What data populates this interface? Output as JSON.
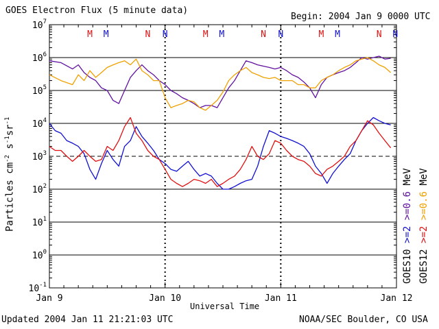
{
  "chart_data": {
    "type": "line",
    "title": "GOES Electron Flux (5 minute data)",
    "begin_label": "Begin: 2004 Jan 9 0000 UTC",
    "xlabel": "Universal Time",
    "ylabel": "Particles cm^-2 s^-1 sr^-1",
    "ylabel_parts": {
      "base": "Particles cm",
      "e1": "-2",
      "s": "s",
      "e2": "-1",
      "sr": "sr",
      "e3": "-1"
    },
    "y_scale": "log",
    "ylim": [
      0.1,
      10000000
    ],
    "y_ticks": [
      {
        "base": "10",
        "exp": "7"
      },
      {
        "base": "10",
        "exp": "6"
      },
      {
        "base": "10",
        "exp": "5"
      },
      {
        "base": "10",
        "exp": "4"
      },
      {
        "base": "10",
        "exp": "3"
      },
      {
        "base": "10",
        "exp": "2"
      },
      {
        "base": "10",
        "exp": "1"
      },
      {
        "base": "10",
        "exp": "0"
      },
      {
        "base": "10",
        "exp": "-1"
      }
    ],
    "x_range_days": [
      0,
      3
    ],
    "x_ticks": [
      "Jan 9",
      "Jan 10",
      "Jan 11",
      "Jan 12"
    ],
    "grid": "horizontal decades",
    "day_marks": [
      {
        "day": 0,
        "labels": [
          {
            "text": "M",
            "color": "#e01010",
            "t": 0.35
          },
          {
            "text": "M",
            "color": "#1010d0",
            "t": 0.49
          },
          {
            "text": "N",
            "color": "#e01010",
            "t": 0.85
          },
          {
            "text": "N",
            "color": "#1010d0",
            "t": 1.0
          }
        ]
      },
      {
        "day": 1,
        "labels": [
          {
            "text": "M",
            "color": "#e01010",
            "t": 1.35
          },
          {
            "text": "M",
            "color": "#1010d0",
            "t": 1.49
          },
          {
            "text": "N",
            "color": "#e01010",
            "t": 1.85
          },
          {
            "text": "N",
            "color": "#1010d0",
            "t": 2.0
          }
        ]
      },
      {
        "day": 2,
        "labels": [
          {
            "text": "M",
            "color": "#e01010",
            "t": 2.35
          },
          {
            "text": "M",
            "color": "#1010d0",
            "t": 2.49
          },
          {
            "text": "N",
            "color": "#e01010",
            "t": 2.85
          },
          {
            "text": "N",
            "color": "#1010d0",
            "t": 2.99
          }
        ]
      }
    ],
    "threshold_line": 1000,
    "legend_left": [
      {
        "text": ">=2",
        "color": "#1010d0"
      },
      {
        "text": ">=0.6",
        "color": "#6010a0"
      },
      {
        "text": "MeV",
        "color": "#000000"
      }
    ],
    "legend_right": [
      {
        "text": ">=2",
        "color": "#e01010"
      },
      {
        "text": ">=0.6",
        "color": "#f0a000"
      },
      {
        "text": "MeV",
        "color": "#000000"
      }
    ],
    "satellite_left": "GOES10",
    "satellite_right": "GOES12",
    "series": [
      {
        "name": "GOES10 >=0.6 MeV",
        "color": "#6010a0",
        "x": [
          0.0,
          0.1,
          0.2,
          0.25,
          0.3,
          0.35,
          0.4,
          0.45,
          0.5,
          0.55,
          0.6,
          0.65,
          0.7,
          0.75,
          0.8,
          0.85,
          0.9,
          0.95,
          1.0,
          1.05,
          1.1,
          1.15,
          1.2,
          1.25,
          1.3,
          1.35,
          1.4,
          1.45,
          1.5,
          1.55,
          1.6,
          1.65,
          1.7,
          1.75,
          1.8,
          1.85,
          1.9,
          1.95,
          2.0,
          2.05,
          2.1,
          2.15,
          2.2,
          2.25,
          2.3,
          2.35,
          2.4,
          2.45,
          2.5,
          2.55,
          2.6,
          2.65,
          2.7,
          2.75,
          2.8,
          2.85,
          2.9,
          2.95
        ],
        "y": [
          800000,
          700000,
          450000,
          600000,
          350000,
          250000,
          200000,
          120000,
          100000,
          50000,
          40000,
          100000,
          250000,
          400000,
          600000,
          400000,
          300000,
          200000,
          150000,
          100000,
          80000,
          60000,
          50000,
          40000,
          30000,
          35000,
          35000,
          30000,
          60000,
          120000,
          200000,
          400000,
          800000,
          700000,
          600000,
          550000,
          500000,
          450000,
          500000,
          400000,
          300000,
          250000,
          180000,
          120000,
          60000,
          150000,
          250000,
          300000,
          350000,
          400000,
          500000,
          700000,
          1000000,
          900000,
          1000000,
          1100000,
          900000,
          950000
        ]
      },
      {
        "name": "GOES12 >=0.6 MeV",
        "color": "#f0a000",
        "x": [
          0.0,
          0.1,
          0.2,
          0.25,
          0.3,
          0.35,
          0.4,
          0.45,
          0.5,
          0.55,
          0.6,
          0.65,
          0.7,
          0.75,
          0.8,
          0.85,
          0.9,
          0.95,
          1.0,
          1.05,
          1.1,
          1.15,
          1.2,
          1.25,
          1.3,
          1.35,
          1.4,
          1.45,
          1.5,
          1.55,
          1.6,
          1.65,
          1.7,
          1.75,
          1.8,
          1.85,
          1.9,
          1.95,
          2.0,
          2.05,
          2.1,
          2.15,
          2.2,
          2.25,
          2.3,
          2.35,
          2.4,
          2.45,
          2.5,
          2.55,
          2.6,
          2.65,
          2.7,
          2.75,
          2.8,
          2.85,
          2.9,
          2.95
        ],
        "y": [
          300000,
          200000,
          150000,
          300000,
          200000,
          400000,
          250000,
          350000,
          500000,
          600000,
          700000,
          800000,
          600000,
          900000,
          400000,
          300000,
          200000,
          200000,
          60000,
          30000,
          35000,
          40000,
          50000,
          45000,
          30000,
          25000,
          35000,
          50000,
          90000,
          200000,
          300000,
          400000,
          500000,
          350000,
          300000,
          250000,
          230000,
          250000,
          200000,
          200000,
          200000,
          150000,
          150000,
          120000,
          120000,
          200000,
          250000,
          300000,
          400000,
          500000,
          600000,
          800000,
          900000,
          1000000,
          800000,
          600000,
          500000,
          350000
        ]
      },
      {
        "name": "GOES10 >=2 MeV",
        "color": "#1010d0",
        "x": [
          0.0,
          0.05,
          0.1,
          0.15,
          0.2,
          0.25,
          0.3,
          0.35,
          0.4,
          0.45,
          0.5,
          0.55,
          0.6,
          0.65,
          0.7,
          0.75,
          0.8,
          0.85,
          0.9,
          0.95,
          1.0,
          1.05,
          1.1,
          1.15,
          1.2,
          1.25,
          1.3,
          1.35,
          1.4,
          1.45,
          1.5,
          1.55,
          1.6,
          1.65,
          1.7,
          1.75,
          1.8,
          1.85,
          1.9,
          1.95,
          2.0,
          2.05,
          2.1,
          2.15,
          2.2,
          2.25,
          2.3,
          2.35,
          2.4,
          2.45,
          2.5,
          2.55,
          2.6,
          2.65,
          2.7,
          2.75,
          2.8,
          2.85,
          2.9,
          2.95
        ],
        "y": [
          10000,
          6000,
          5000,
          3000,
          2500,
          2000,
          1200,
          400,
          200,
          600,
          1500,
          800,
          500,
          2000,
          3000,
          8000,
          4000,
          2500,
          1500,
          800,
          600,
          400,
          350,
          500,
          700,
          400,
          250,
          300,
          250,
          150,
          100,
          100,
          120,
          150,
          180,
          200,
          500,
          2000,
          6000,
          5000,
          4000,
          3500,
          3000,
          2500,
          2000,
          1200,
          500,
          300,
          150,
          300,
          500,
          800,
          1200,
          3000,
          6000,
          10000,
          15000,
          12000,
          10000,
          9000
        ]
      },
      {
        "name": "GOES12 >=2 MeV",
        "color": "#e01010",
        "x": [
          0.0,
          0.05,
          0.1,
          0.15,
          0.2,
          0.25,
          0.3,
          0.35,
          0.4,
          0.45,
          0.5,
          0.55,
          0.6,
          0.65,
          0.7,
          0.75,
          0.8,
          0.85,
          0.9,
          0.95,
          1.0,
          1.05,
          1.1,
          1.15,
          1.2,
          1.25,
          1.3,
          1.35,
          1.4,
          1.45,
          1.5,
          1.55,
          1.6,
          1.65,
          1.7,
          1.75,
          1.8,
          1.85,
          1.9,
          1.95,
          2.0,
          2.05,
          2.1,
          2.15,
          2.2,
          2.25,
          2.3,
          2.35,
          2.4,
          2.45,
          2.5,
          2.55,
          2.6,
          2.65,
          2.7,
          2.75,
          2.8,
          2.85,
          2.9,
          2.95
        ],
        "y": [
          2000,
          1500,
          1500,
          1000,
          700,
          1000,
          1500,
          1000,
          700,
          800,
          2000,
          1500,
          3000,
          8000,
          15000,
          5000,
          3000,
          1500,
          1000,
          800,
          400,
          200,
          150,
          120,
          150,
          200,
          180,
          150,
          200,
          120,
          150,
          200,
          250,
          400,
          800,
          2000,
          1000,
          800,
          1200,
          3000,
          2500,
          1500,
          1000,
          800,
          700,
          500,
          300,
          250,
          400,
          500,
          700,
          1000,
          2000,
          3000,
          6000,
          12000,
          9000,
          5000,
          3000,
          1800
        ]
      }
    ]
  },
  "footer": {
    "updated": "Updated 2004 Jan 11 21:21:03 UTC",
    "credit": "NOAA/SEC Boulder, CO USA"
  }
}
